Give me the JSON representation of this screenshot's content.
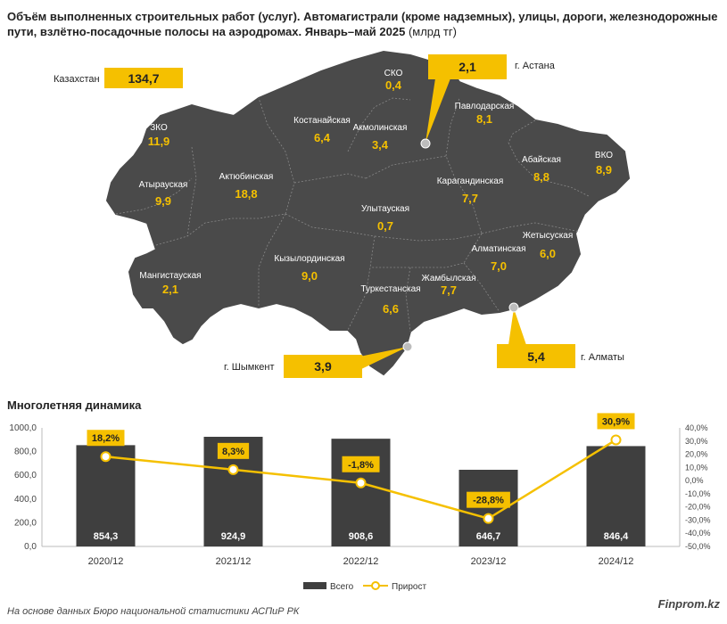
{
  "title": {
    "main": "Объём выполненных строительных работ (услуг). Автомагистрали (кроме надземных), улицы, дороги, железнодорожные пути, взлётно-посадочные полосы на аэродромах. Январь–май 2025",
    "unit": "(млрд тг)"
  },
  "map": {
    "total": {
      "label": "Казахстан",
      "value": "134,7"
    },
    "cities": [
      {
        "id": "astana",
        "label": "г. Астана",
        "value": "2,1"
      },
      {
        "id": "almaty",
        "label": "г. Алматы",
        "value": "5,4"
      },
      {
        "id": "shymkent",
        "label": "г. Шымкент",
        "value": "3,9"
      }
    ],
    "regions": [
      {
        "id": "sko",
        "label": "СКО",
        "value": "0,4"
      },
      {
        "id": "kostanay",
        "label": "Костанайская",
        "value": "6,4"
      },
      {
        "id": "akmola",
        "label": "Акмолинская",
        "value": "3,4"
      },
      {
        "id": "pavlodar",
        "label": "Павлодарская",
        "value": "8,1"
      },
      {
        "id": "zko",
        "label": "ЗКО",
        "value": "11,9"
      },
      {
        "id": "aktobe",
        "label": "Актюбинская",
        "value": "18,8"
      },
      {
        "id": "atyrau",
        "label": "Атырауская",
        "value": "9,9"
      },
      {
        "id": "abay",
        "label": "Абайская",
        "value": "8,8"
      },
      {
        "id": "vko",
        "label": "ВКО",
        "value": "8,9"
      },
      {
        "id": "karaganda",
        "label": "Карагандинская",
        "value": "7,7"
      },
      {
        "id": "ulytau",
        "label": "Улытауская",
        "value": "0,7"
      },
      {
        "id": "mangystau",
        "label": "Мангистауская",
        "value": "2,1"
      },
      {
        "id": "kyzylorda",
        "label": "Кызылординская",
        "value": "9,0"
      },
      {
        "id": "almaty_region",
        "label": "Алматинская",
        "value": "7,0"
      },
      {
        "id": "zhetisu",
        "label": "Жетысуская",
        "value": "6,0"
      },
      {
        "id": "turkestan",
        "label": "Туркестанская",
        "value": "6,6"
      },
      {
        "id": "zhambyl",
        "label": "Жамбылская",
        "value": "7,7"
      }
    ]
  },
  "dynamics_title": "Многолетняя динамика",
  "chart_data": {
    "type": "bar",
    "categories": [
      "2020/12",
      "2021/12",
      "2022/12",
      "2023/12",
      "2024/12"
    ],
    "series": [
      {
        "name": "Всего",
        "type": "bar",
        "axis": "left",
        "values": [
          854.3,
          924.9,
          908.6,
          646.7,
          846.4
        ],
        "labels": [
          "854,3",
          "924,9",
          "908,6",
          "646,7",
          "846,4"
        ],
        "color": "#3f3f3f"
      },
      {
        "name": "Прирост",
        "type": "line",
        "axis": "right",
        "values": [
          18.2,
          8.3,
          -1.8,
          -28.8,
          30.9
        ],
        "labels": [
          "18,2%",
          "8,3%",
          "-1,8%",
          "-28,8%",
          "30,9%"
        ],
        "color": "#f5c000"
      }
    ],
    "y_left": {
      "min": 0,
      "max": 1000,
      "ticks": [
        "0,0",
        "200,0",
        "400,0",
        "600,0",
        "800,0",
        "1000,0"
      ]
    },
    "y_right": {
      "min": -50,
      "max": 40,
      "ticks": [
        "-50,0%",
        "-40,0%",
        "-30,0%",
        "-20,0%",
        "-10,0%",
        "0,0%",
        "10,0%",
        "20,0%",
        "30,0%",
        "40,0%"
      ]
    },
    "grid": false,
    "legend": "bottom"
  },
  "colors": {
    "region_fill": "#4a4a4a",
    "accent": "#f5c000",
    "bar": "#3f3f3f"
  },
  "source": "На основе данных Бюро национальной статистики АСПиР РК",
  "brand": "Finprom.kz"
}
